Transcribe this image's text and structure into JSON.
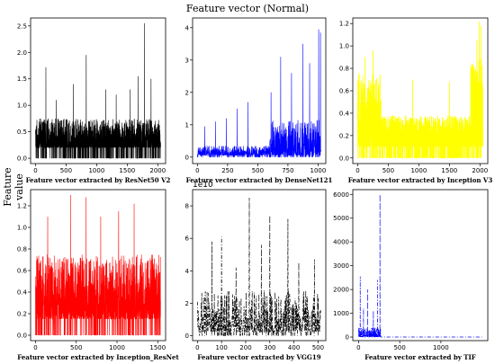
{
  "figure": {
    "title": "Feature vector (Normal)",
    "ylabel": "Feature value"
  },
  "chart_data": [
    {
      "type": "line",
      "xlabel": "Feature vector extracted by ResNet50 V2",
      "color": "#000000",
      "dash": "",
      "n": 2048,
      "xlim": [
        -80,
        2128
      ],
      "ylim": [
        -0.1,
        2.65
      ],
      "xticks": [
        0,
        500,
        1000,
        1500,
        2000
      ],
      "yticks": [
        0.0,
        0.5,
        1.0,
        1.5,
        2.0,
        2.5
      ],
      "ytick_labels": [
        "0.0",
        "0.5",
        "1.0",
        "1.5",
        "2.0",
        "2.5"
      ],
      "baseline": 0.2,
      "spread": 0.55,
      "segments": [
        [
          0,
          2048,
          1.0
        ]
      ],
      "peaks": [
        [
          1780,
          2.55
        ],
        [
          830,
          1.95
        ],
        [
          170,
          1.72
        ],
        [
          1680,
          1.55
        ],
        [
          1890,
          1.5
        ],
        [
          620,
          1.4
        ],
        [
          1150,
          1.3
        ],
        [
          1320,
          1.2
        ],
        [
          1550,
          1.3
        ],
        [
          340,
          1.1
        ]
      ]
    },
    {
      "type": "line",
      "xlabel": "Feature vector extracted by DenseNet121",
      "color": "#0000ff",
      "dash": "",
      "n": 1024,
      "xlim": [
        -40,
        1064
      ],
      "ylim": [
        -0.2,
        4.3
      ],
      "xticks": [
        0,
        250,
        500,
        750,
        1000
      ],
      "yticks": [
        0,
        1,
        2,
        3,
        4
      ],
      "ytick_labels": [
        "0",
        "1",
        "2",
        "3",
        "4"
      ],
      "baseline": 0.05,
      "spread": 0.5,
      "segments": [
        [
          0,
          600,
          0.6
        ],
        [
          600,
          1024,
          2.2
        ]
      ],
      "peaks": [
        [
          1005,
          3.95
        ],
        [
          1020,
          3.85
        ],
        [
          875,
          3.5
        ],
        [
          690,
          3.1
        ],
        [
          930,
          2.9
        ],
        [
          780,
          2.6
        ],
        [
          610,
          2.0
        ],
        [
          420,
          1.7
        ],
        [
          330,
          1.5
        ],
        [
          60,
          0.95
        ],
        [
          150,
          1.1
        ],
        [
          240,
          1.2
        ]
      ]
    },
    {
      "type": "line",
      "xlabel": "Feature vector extracted by Inception V3",
      "color": "#ffff00",
      "dash": "",
      "n": 2048,
      "xlim": [
        -80,
        2128
      ],
      "ylim": [
        -0.05,
        1.25
      ],
      "xticks": [
        0,
        500,
        1000,
        1500,
        2000
      ],
      "yticks": [
        0.0,
        0.2,
        0.4,
        0.6,
        0.8,
        1.0,
        1.2
      ],
      "ytick_labels": [
        "0.0",
        "0.2",
        "0.4",
        "0.6",
        "0.8",
        "1.0",
        "1.2"
      ],
      "baseline": 0.1,
      "spread": 0.35,
      "segments": [
        [
          0,
          380,
          1.9
        ],
        [
          380,
          1850,
          0.8
        ],
        [
          1850,
          2048,
          2.3
        ]
      ],
      "peaks": [
        [
          1990,
          1.22
        ],
        [
          2020,
          1.18
        ],
        [
          1950,
          1.05
        ],
        [
          250,
          0.96
        ],
        [
          120,
          0.9
        ],
        [
          900,
          0.7
        ],
        [
          1500,
          0.68
        ]
      ]
    },
    {
      "type": "line",
      "xlabel": "Feature vector extracted by Inception_ResNet",
      "color": "#ff0000",
      "dash": "",
      "n": 1536,
      "xlim": [
        -60,
        1596
      ],
      "ylim": [
        -0.05,
        1.35
      ],
      "xticks": [
        0,
        500,
        1000,
        1500
      ],
      "yticks": [
        0.0,
        0.2,
        0.4,
        0.6,
        0.8,
        1.0,
        1.2
      ],
      "ytick_labels": [
        "0.0",
        "0.2",
        "0.4",
        "0.6",
        "0.8",
        "1.0",
        "1.2"
      ],
      "baseline": 0.15,
      "spread": 0.6,
      "segments": [
        [
          0,
          1536,
          1.0
        ]
      ],
      "peaks": [
        [
          430,
          1.3
        ],
        [
          620,
          1.28
        ],
        [
          1210,
          1.22
        ],
        [
          1020,
          1.15
        ],
        [
          150,
          1.1
        ],
        [
          800,
          1.1
        ]
      ]
    },
    {
      "type": "line",
      "xlabel": "Feature vector extracted by VGG19",
      "color": "#000000",
      "dash": "4,2,1,2",
      "n": 512,
      "xlim": [
        -20,
        532
      ],
      "ylim": [
        -0.3,
        9.0
      ],
      "exponent": "1e10",
      "xticks": [
        0,
        100,
        200,
        300,
        400,
        500
      ],
      "yticks": [
        0,
        2,
        4,
        6,
        8
      ],
      "ytick_labels": [
        "0",
        "2",
        "4",
        "6",
        "8"
      ],
      "baseline": 0.2,
      "spread": 2.6,
      "segments": [
        [
          0,
          512,
          1.0
        ]
      ],
      "peaks": [
        [
          215,
          8.5
        ],
        [
          300,
          7.4
        ],
        [
          375,
          7.2
        ],
        [
          100,
          6.1
        ],
        [
          60,
          5.8
        ],
        [
          265,
          5.6
        ],
        [
          485,
          4.7
        ],
        [
          160,
          4.2
        ],
        [
          420,
          4.5
        ]
      ]
    },
    {
      "type": "line",
      "xlabel": "Feature vector extracted by TIF",
      "color": "#0000ff",
      "dash": "4,2,1,2",
      "n": 1500,
      "xlim": [
        -70,
        1570
      ],
      "ylim": [
        -150,
        6200
      ],
      "xticks": [
        0,
        500,
        1000
      ],
      "yticks": [
        0,
        1000,
        2000,
        3000,
        4000,
        5000,
        6000
      ],
      "ytick_labels": [
        "0",
        "1000",
        "2000",
        "3000",
        "4000",
        "5000",
        "6000"
      ],
      "baseline": 0,
      "spread": 400,
      "segments": [
        [
          0,
          270,
          1.0
        ],
        [
          270,
          1500,
          0.0
        ]
      ],
      "peaks": [
        [
          260,
          6000
        ],
        [
          20,
          2550
        ],
        [
          230,
          2400
        ],
        [
          110,
          2000
        ],
        [
          180,
          1100
        ],
        [
          60,
          1200
        ]
      ]
    }
  ]
}
